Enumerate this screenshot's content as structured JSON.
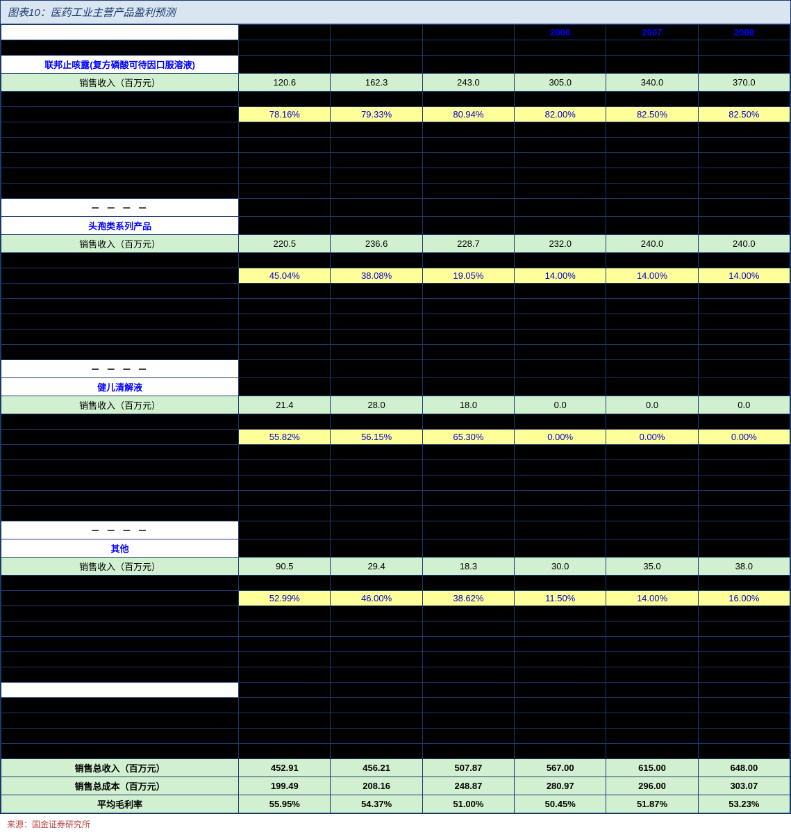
{
  "title": "图表10：医药工业主营产品盈利预测",
  "source": "来源：国金证券研究所",
  "colors": {
    "border": "#1a3a6e",
    "title_bg": "#d9e6f2",
    "green_row": "#d0f0d0",
    "yellow_row": "#ffff99",
    "blue_text": "#0000ff",
    "source_text": "#c04040"
  },
  "years": [
    "",
    "",
    "",
    "2006",
    "2007",
    "2008"
  ],
  "sections": [
    {
      "name": "联邦止咳露(复方磷酸可待因口服溶液)",
      "revenue_label": "销售收入（百万元）",
      "revenue": [
        "120.6",
        "162.3",
        "243.0",
        "305.0",
        "340.0",
        "370.0"
      ],
      "margin": [
        "78.16%",
        "79.33%",
        "80.94%",
        "82.00%",
        "82.50%",
        "82.50%"
      ],
      "dashes": "－ － － －"
    },
    {
      "name": "头孢类系列产品",
      "revenue_label": "销售收入（百万元）",
      "revenue": [
        "220.5",
        "236.6",
        "228.7",
        "232.0",
        "240.0",
        "240.0"
      ],
      "margin": [
        "45.04%",
        "38.08%",
        "19.05%",
        "14.00%",
        "14.00%",
        "14.00%"
      ],
      "dashes": "－ － － －"
    },
    {
      "name": "健儿清解液",
      "revenue_label": "销售收入（百万元）",
      "revenue": [
        "21.4",
        "28.0",
        "18.0",
        "0.0",
        "0.0",
        "0.0"
      ],
      "margin": [
        "55.82%",
        "56.15%",
        "65.30%",
        "0.00%",
        "0.00%",
        "0.00%"
      ],
      "dashes": "－ － － －"
    },
    {
      "name": "其他",
      "revenue_label": "销售收入（百万元）",
      "revenue": [
        "90.5",
        "29.4",
        "18.3",
        "30.0",
        "35.0",
        "38.0"
      ],
      "margin": [
        "52.99%",
        "46.00%",
        "38.62%",
        "11.50%",
        "14.00%",
        "16.00%"
      ],
      "dashes": ""
    }
  ],
  "summary": {
    "rows": [
      {
        "label": "销售总收入（百万元）",
        "vals": [
          "452.91",
          "456.21",
          "507.87",
          "567.00",
          "615.00",
          "648.00"
        ]
      },
      {
        "label": "销售总成本（百万元）",
        "vals": [
          "199.49",
          "208.16",
          "248.87",
          "280.97",
          "296.00",
          "303.07"
        ]
      },
      {
        "label": "平均毛利率",
        "vals": [
          "55.95%",
          "54.37%",
          "51.00%",
          "50.45%",
          "51.87%",
          "53.23%"
        ]
      }
    ]
  }
}
